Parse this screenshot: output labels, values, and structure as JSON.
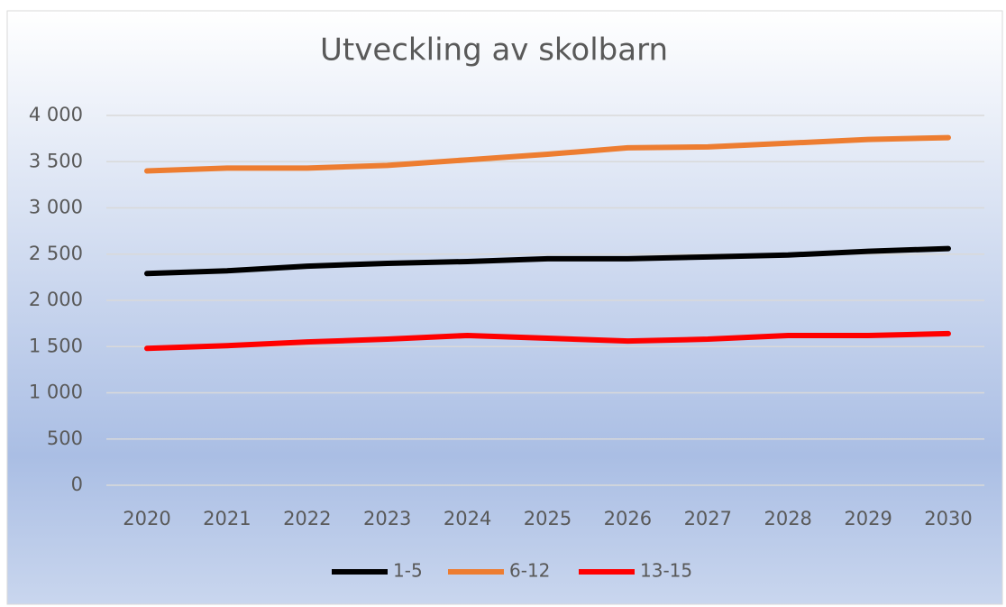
{
  "chart_data": {
    "type": "line",
    "title": "Utveckling av skolbarn",
    "categories": [
      "2020",
      "2021",
      "2022",
      "2023",
      "2024",
      "2025",
      "2026",
      "2027",
      "2028",
      "2029",
      "2030"
    ],
    "series": [
      {
        "name": "1-5",
        "color": "#000000",
        "values": [
          2290,
          2320,
          2370,
          2400,
          2420,
          2450,
          2450,
          2470,
          2490,
          2530,
          2560
        ]
      },
      {
        "name": "6-12",
        "color": "#ed7d31",
        "values": [
          3400,
          3430,
          3430,
          3460,
          3520,
          3580,
          3650,
          3660,
          3700,
          3740,
          3760
        ]
      },
      {
        "name": "13-15",
        "color": "#ff0000",
        "values": [
          1480,
          1510,
          1550,
          1580,
          1620,
          1590,
          1560,
          1580,
          1620,
          1620,
          1640
        ]
      }
    ],
    "ylim": [
      0,
      4000
    ],
    "yticks": [
      0,
      500,
      {
        "value": 1000,
        "label": "1 000"
      },
      {
        "value": 1500,
        "label": "1 500"
      },
      {
        "value": 2000,
        "label": "2 000"
      },
      {
        "value": 2500,
        "label": "2 500"
      },
      {
        "value": 3000,
        "label": "3 000"
      },
      {
        "value": 3500,
        "label": "3 500"
      },
      {
        "value": 4000,
        "label": "4 000"
      }
    ],
    "grid": true,
    "legend": "bottom"
  }
}
